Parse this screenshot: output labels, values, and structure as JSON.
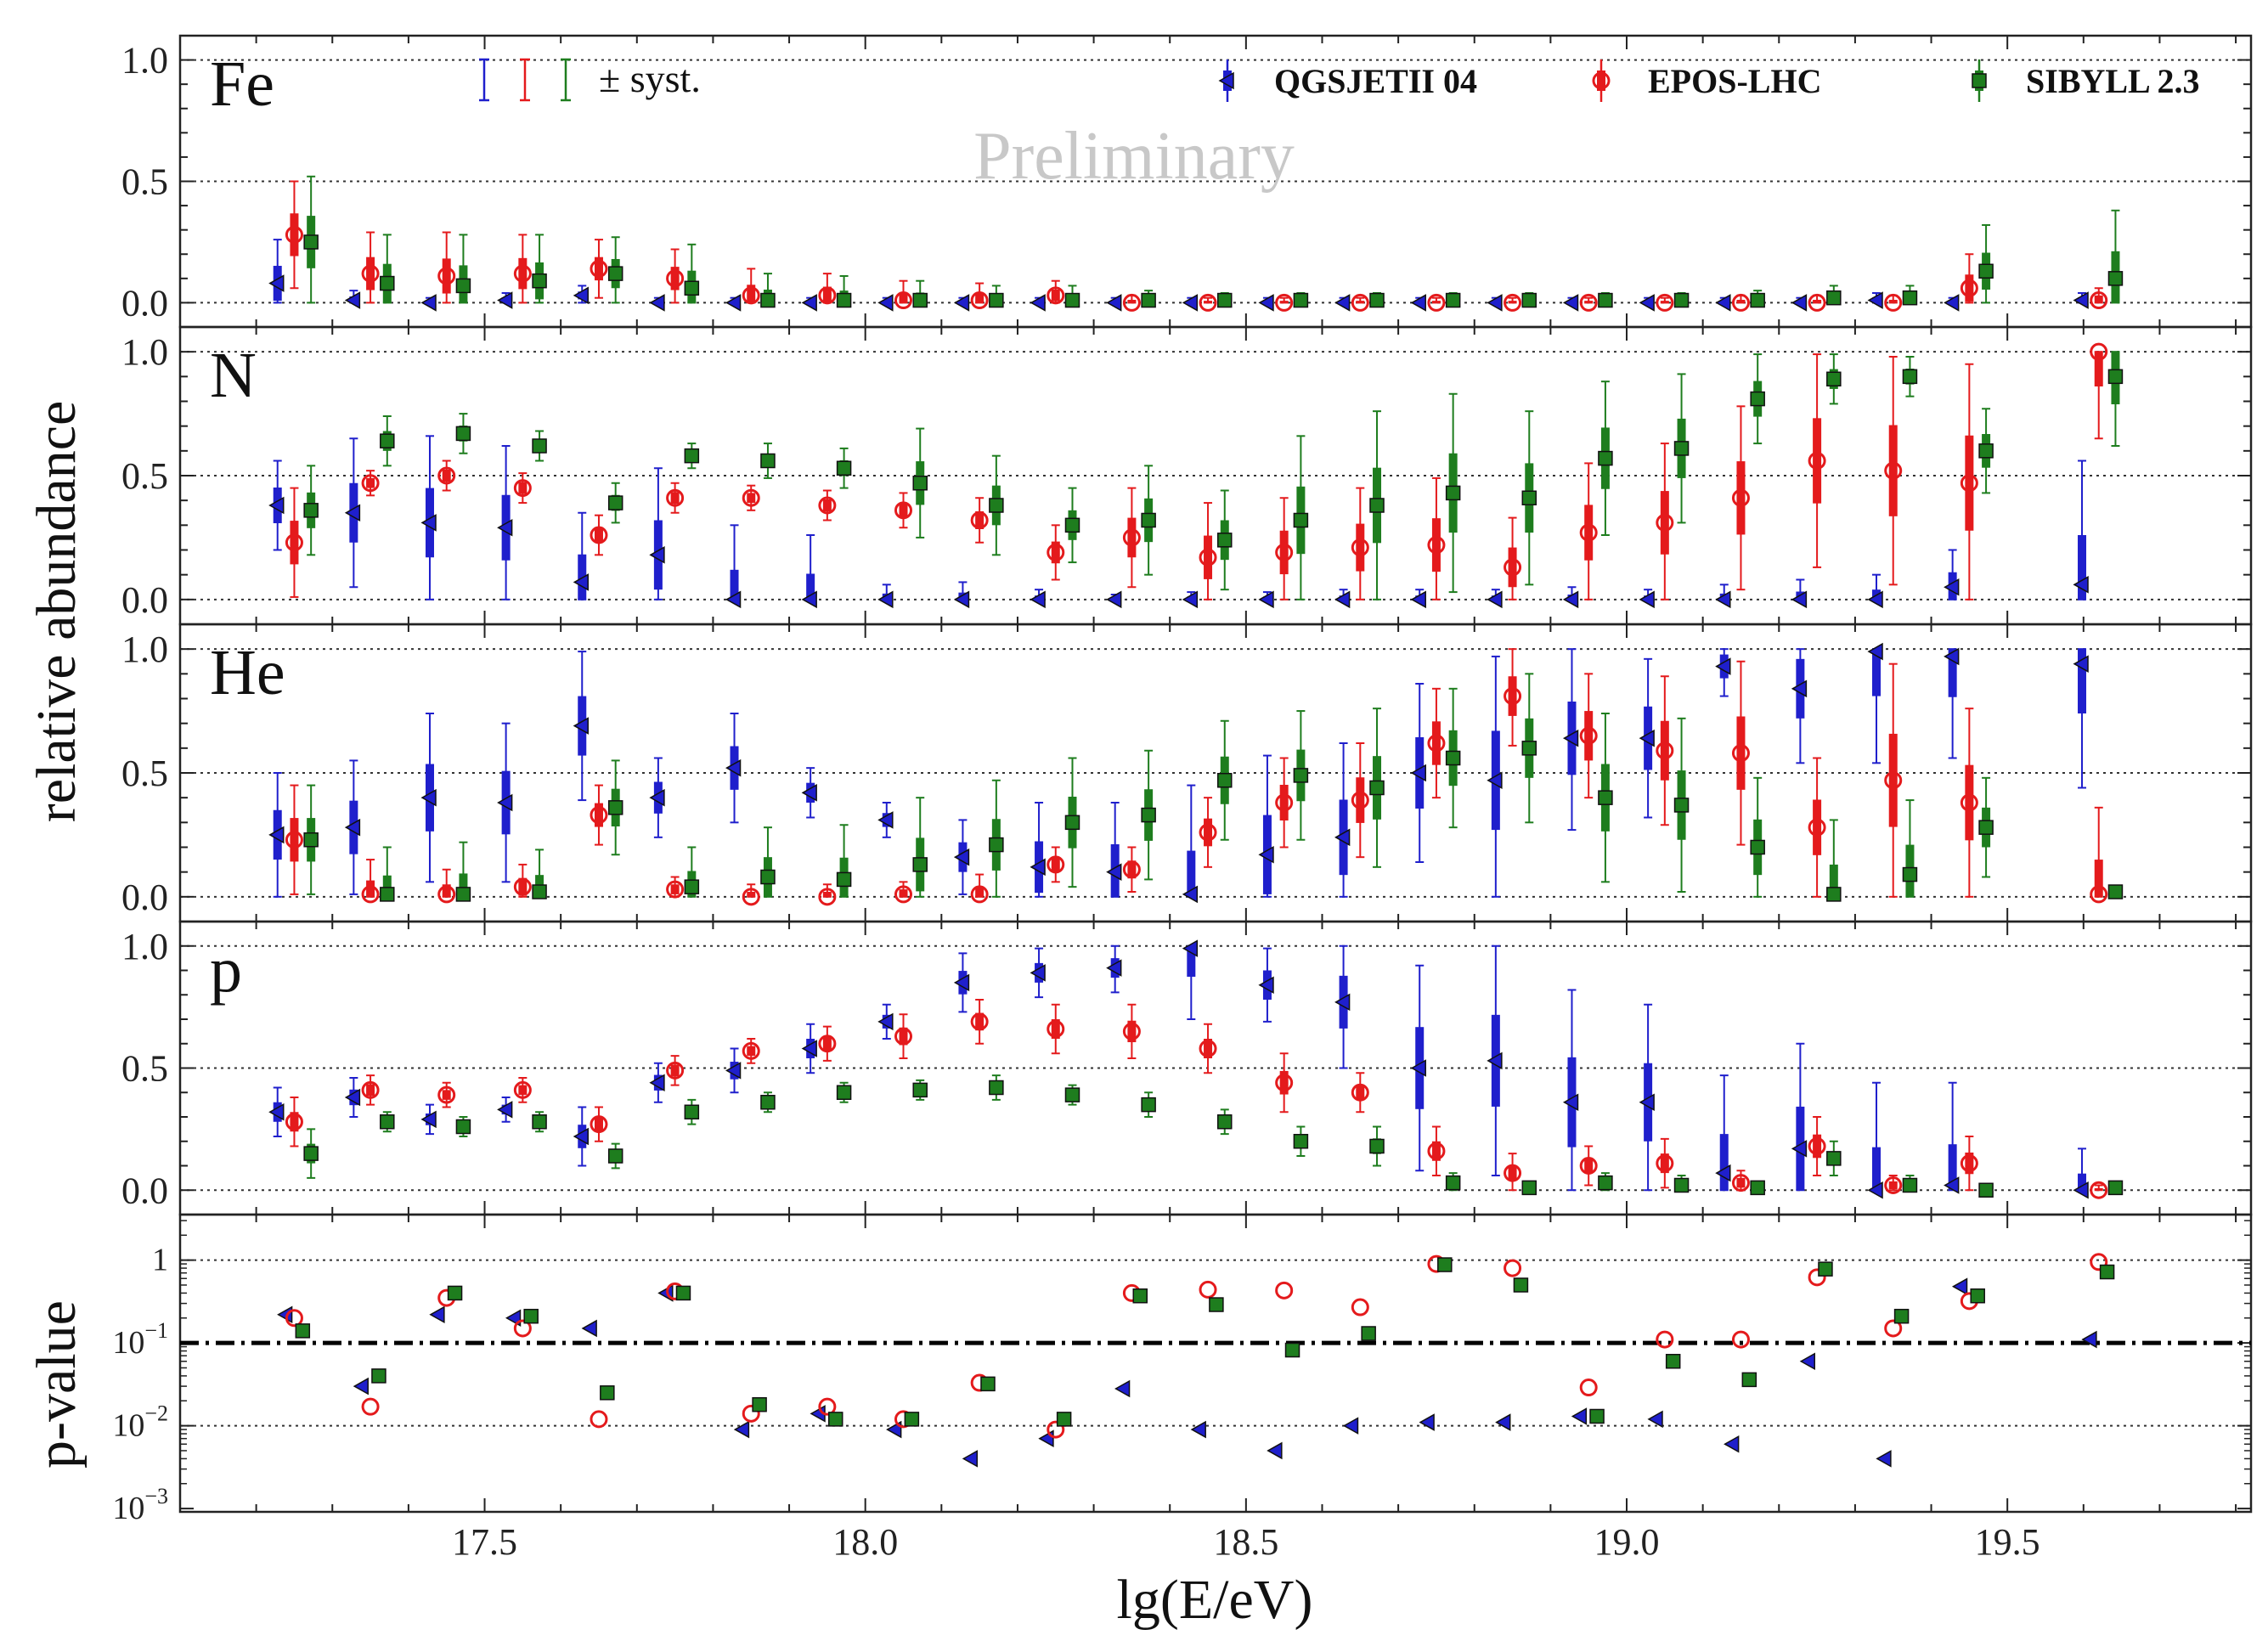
{
  "chart_data": {
    "type": "scatter",
    "xlabel": "lg(E/eV)",
    "ylabel": "relative abundance",
    "ylabel_pvalue": "p-value",
    "watermark": "Preliminary",
    "xlim": [
      17.1,
      19.82
    ],
    "xticks": [
      17.5,
      18.0,
      18.5,
      19.0,
      19.5
    ],
    "xtick_labels": [
      "17.5",
      "18.0",
      "18.5",
      "19.0",
      "19.5"
    ],
    "abundance_ylim": [
      -0.1,
      1.1
    ],
    "abundance_yticks": [
      0.0,
      0.5,
      1.0
    ],
    "abundance_ytick_labels": [
      "0.0",
      "0.5",
      "1.0"
    ],
    "pvalue_yticks": [
      0.001,
      0.01,
      0.1,
      1
    ],
    "pvalue_ytick_labels": [
      {
        "base": "10",
        "exp": "−3"
      },
      {
        "base": "10",
        "exp": "−2"
      },
      {
        "base": "10",
        "exp": "−1"
      },
      {
        "base": "1",
        "exp": ""
      }
    ],
    "pvalue_threshold": 0.1,
    "syst_label": "± syst.",
    "energies": [
      17.25,
      17.35,
      17.45,
      17.55,
      17.65,
      17.75,
      17.85,
      17.95,
      18.05,
      18.15,
      18.25,
      18.35,
      18.45,
      18.55,
      18.65,
      18.75,
      18.85,
      18.95,
      19.05,
      19.15,
      19.25,
      19.35,
      19.45,
      19.62
    ],
    "models": [
      {
        "name": "QGSJETII 04",
        "color": "#1f1fcc",
        "marker": "triangle-left",
        "offset": -0.022
      },
      {
        "name": "EPOS-LHC",
        "color": "#e41a1c",
        "marker": "open-circle",
        "offset": 0.0
      },
      {
        "name": "SIBYLL 2.3",
        "color": "#1e7d1e",
        "marker": "square",
        "offset": 0.022
      }
    ],
    "panels": [
      {
        "label": "Fe",
        "series": {
          "QGSJETII 04": [
            0.08,
            0.01,
            0.0,
            0.01,
            0.03,
            0.0,
            0.0,
            0.0,
            0.0,
            0.0,
            0.0,
            0.0,
            0.0,
            0.0,
            0.0,
            0.0,
            0.0,
            0.0,
            0.0,
            0.0,
            0.0,
            0.01,
            0.0,
            0.01
          ],
          "EPOS-LHC": [
            0.28,
            0.12,
            0.11,
            0.12,
            0.14,
            0.1,
            0.03,
            0.03,
            0.01,
            0.01,
            0.03,
            0.0,
            0.0,
            0.0,
            0.0,
            0.0,
            0.0,
            0.0,
            0.0,
            0.0,
            0.0,
            0.0,
            0.06,
            0.01
          ],
          "SIBYLL 2.3": [
            0.25,
            0.08,
            0.07,
            0.09,
            0.12,
            0.06,
            0.01,
            0.01,
            0.01,
            0.01,
            0.01,
            0.01,
            0.01,
            0.01,
            0.01,
            0.01,
            0.01,
            0.01,
            0.01,
            0.01,
            0.02,
            0.02,
            0.13,
            0.1
          ]
        },
        "errors": {
          "QGSJETII 04": [
            0.18,
            0.04,
            0.02,
            0.03,
            0.04,
            0.02,
            0.02,
            0.02,
            0.02,
            0.02,
            0.02,
            0.02,
            0.02,
            0.02,
            0.02,
            0.02,
            0.02,
            0.02,
            0.02,
            0.02,
            0.02,
            0.03,
            0.02,
            0.03
          ],
          "EPOS-LHC": [
            0.22,
            0.17,
            0.18,
            0.16,
            0.12,
            0.12,
            0.11,
            0.09,
            0.08,
            0.07,
            0.06,
            0.03,
            0.02,
            0.02,
            0.02,
            0.02,
            0.02,
            0.02,
            0.02,
            0.03,
            0.03,
            0.03,
            0.14,
            0.05
          ],
          "SIBYLL 2.3": [
            0.27,
            0.2,
            0.21,
            0.19,
            0.15,
            0.18,
            0.11,
            0.1,
            0.08,
            0.06,
            0.06,
            0.04,
            0.03,
            0.03,
            0.03,
            0.03,
            0.03,
            0.03,
            0.03,
            0.04,
            0.05,
            0.05,
            0.19,
            0.28
          ]
        }
      },
      {
        "label": "N",
        "series": {
          "QGSJETII 04": [
            0.38,
            0.35,
            0.31,
            0.29,
            0.07,
            0.18,
            0.0,
            0.0,
            0.0,
            0.0,
            0.0,
            0.0,
            0.0,
            0.0,
            0.0,
            0.0,
            0.0,
            0.0,
            0.0,
            0.0,
            0.0,
            0.0,
            0.05,
            0.06
          ],
          "EPOS-LHC": [
            0.23,
            0.47,
            0.5,
            0.45,
            0.26,
            0.41,
            0.41,
            0.38,
            0.36,
            0.32,
            0.19,
            0.25,
            0.17,
            0.19,
            0.21,
            0.22,
            0.13,
            0.27,
            0.31,
            0.41,
            0.56,
            0.52,
            0.47,
            1.0
          ],
          "SIBYLL 2.3": [
            0.36,
            0.64,
            0.67,
            0.62,
            0.39,
            0.58,
            0.56,
            0.53,
            0.47,
            0.38,
            0.3,
            0.32,
            0.24,
            0.32,
            0.38,
            0.43,
            0.41,
            0.57,
            0.61,
            0.81,
            0.89,
            0.9,
            0.6,
            0.9
          ]
        },
        "errors": {
          "QGSJETII 04": [
            0.18,
            0.3,
            0.35,
            0.33,
            0.28,
            0.35,
            0.3,
            0.26,
            0.06,
            0.07,
            0.04,
            0.02,
            0.03,
            0.03,
            0.04,
            0.04,
            0.04,
            0.05,
            0.04,
            0.06,
            0.08,
            0.1,
            0.15,
            0.5
          ],
          "EPOS-LHC": [
            0.22,
            0.05,
            0.06,
            0.06,
            0.08,
            0.06,
            0.05,
            0.06,
            0.07,
            0.09,
            0.11,
            0.2,
            0.22,
            0.22,
            0.24,
            0.27,
            0.2,
            0.28,
            0.32,
            0.37,
            0.43,
            0.46,
            0.48,
            0.35
          ],
          "SIBYLL 2.3": [
            0.18,
            0.1,
            0.08,
            0.06,
            0.08,
            0.05,
            0.07,
            0.08,
            0.22,
            0.2,
            0.15,
            0.22,
            0.2,
            0.34,
            0.38,
            0.4,
            0.35,
            0.31,
            0.3,
            0.18,
            0.1,
            0.08,
            0.17,
            0.28
          ]
        }
      },
      {
        "label": "He",
        "series": {
          "QGSJETII 04": [
            0.25,
            0.28,
            0.4,
            0.38,
            0.69,
            0.4,
            0.52,
            0.42,
            0.31,
            0.16,
            0.12,
            0.1,
            0.01,
            0.17,
            0.24,
            0.5,
            0.47,
            0.64,
            0.64,
            0.93,
            0.84,
            0.99,
            0.97,
            0.94
          ],
          "EPOS-LHC": [
            0.23,
            0.01,
            0.01,
            0.04,
            0.33,
            0.03,
            0.0,
            0.0,
            0.01,
            0.01,
            0.13,
            0.11,
            0.26,
            0.38,
            0.39,
            0.62,
            0.81,
            0.65,
            0.59,
            0.58,
            0.28,
            0.47,
            0.38,
            0.01
          ],
          "SIBYLL 2.3": [
            0.23,
            0.01,
            0.01,
            0.02,
            0.36,
            0.04,
            0.08,
            0.07,
            0.13,
            0.21,
            0.3,
            0.33,
            0.47,
            0.49,
            0.44,
            0.56,
            0.6,
            0.4,
            0.37,
            0.2,
            0.01,
            0.09,
            0.28,
            0.02
          ]
        },
        "errors": {
          "QGSJETII 04": [
            0.25,
            0.27,
            0.34,
            0.32,
            0.3,
            0.16,
            0.22,
            0.1,
            0.07,
            0.15,
            0.26,
            0.28,
            0.44,
            0.4,
            0.38,
            0.36,
            0.5,
            0.37,
            0.32,
            0.12,
            0.3,
            0.45,
            0.41,
            0.5
          ],
          "EPOS-LHC": [
            0.22,
            0.14,
            0.1,
            0.09,
            0.12,
            0.05,
            0.05,
            0.05,
            0.05,
            0.08,
            0.07,
            0.09,
            0.14,
            0.18,
            0.23,
            0.22,
            0.2,
            0.25,
            0.3,
            0.37,
            0.28,
            0.47,
            0.38,
            0.35
          ],
          "SIBYLL 2.3": [
            0.22,
            0.19,
            0.21,
            0.17,
            0.19,
            0.16,
            0.2,
            0.22,
            0.27,
            0.26,
            0.26,
            0.26,
            0.24,
            0.26,
            0.32,
            0.28,
            0.3,
            0.34,
            0.35,
            0.28,
            0.3,
            0.3,
            0.2,
            0.02
          ]
        }
      },
      {
        "label": "p",
        "series": {
          "QGSJETII 04": [
            0.32,
            0.38,
            0.29,
            0.33,
            0.22,
            0.44,
            0.49,
            0.58,
            0.69,
            0.85,
            0.89,
            0.91,
            0.99,
            0.84,
            0.77,
            0.5,
            0.53,
            0.36,
            0.36,
            0.07,
            0.17,
            0.0,
            0.02,
            0.0
          ],
          "EPOS-LHC": [
            0.28,
            0.41,
            0.39,
            0.41,
            0.27,
            0.49,
            0.57,
            0.6,
            0.63,
            0.69,
            0.66,
            0.65,
            0.58,
            0.44,
            0.4,
            0.16,
            0.07,
            0.1,
            0.11,
            0.03,
            0.18,
            0.02,
            0.11,
            0.0
          ],
          "SIBYLL 2.3": [
            0.15,
            0.28,
            0.26,
            0.28,
            0.14,
            0.32,
            0.36,
            0.4,
            0.41,
            0.42,
            0.39,
            0.35,
            0.28,
            0.2,
            0.18,
            0.03,
            0.01,
            0.03,
            0.02,
            0.01,
            0.13,
            0.02,
            0.0,
            0.01
          ]
        },
        "errors": {
          "QGSJETII 04": [
            0.1,
            0.08,
            0.06,
            0.05,
            0.12,
            0.08,
            0.09,
            0.1,
            0.07,
            0.12,
            0.1,
            0.1,
            0.29,
            0.15,
            0.27,
            0.42,
            0.47,
            0.46,
            0.4,
            0.4,
            0.43,
            0.44,
            0.42,
            0.17
          ],
          "EPOS-LHC": [
            0.1,
            0.06,
            0.05,
            0.05,
            0.07,
            0.06,
            0.05,
            0.07,
            0.09,
            0.09,
            0.1,
            0.11,
            0.1,
            0.12,
            0.08,
            0.1,
            0.08,
            0.08,
            0.1,
            0.05,
            0.12,
            0.04,
            0.11,
            0.02
          ],
          "SIBYLL 2.3": [
            0.1,
            0.04,
            0.04,
            0.04,
            0.05,
            0.05,
            0.04,
            0.04,
            0.04,
            0.05,
            0.04,
            0.05,
            0.05,
            0.06,
            0.08,
            0.04,
            0.02,
            0.04,
            0.04,
            0.02,
            0.07,
            0.04,
            0.02,
            0.01
          ]
        }
      }
    ],
    "pvalues": {
      "QGSJETII 04": [
        0.22,
        0.03,
        0.22,
        0.2,
        0.15,
        0.4,
        0.009,
        0.014,
        0.009,
        0.004,
        0.007,
        0.028,
        0.009,
        0.005,
        0.01,
        0.011,
        0.011,
        0.013,
        0.012,
        0.006,
        0.06,
        0.004,
        0.48,
        0.11
      ],
      "EPOS-LHC": [
        0.2,
        0.017,
        0.35,
        0.15,
        0.012,
        0.42,
        0.014,
        0.017,
        0.012,
        0.033,
        0.009,
        0.4,
        0.44,
        0.43,
        0.27,
        0.9,
        0.8,
        0.029,
        0.11,
        0.11,
        0.62,
        0.15,
        0.32,
        0.95
      ],
      "SIBYLL 2.3": [
        0.14,
        0.04,
        0.4,
        0.21,
        0.025,
        0.4,
        0.018,
        0.012,
        0.012,
        0.032,
        0.012,
        0.37,
        0.29,
        0.082,
        0.13,
        0.88,
        0.5,
        0.013,
        0.06,
        0.036,
        0.78,
        0.21,
        0.37,
        0.72
      ]
    }
  }
}
